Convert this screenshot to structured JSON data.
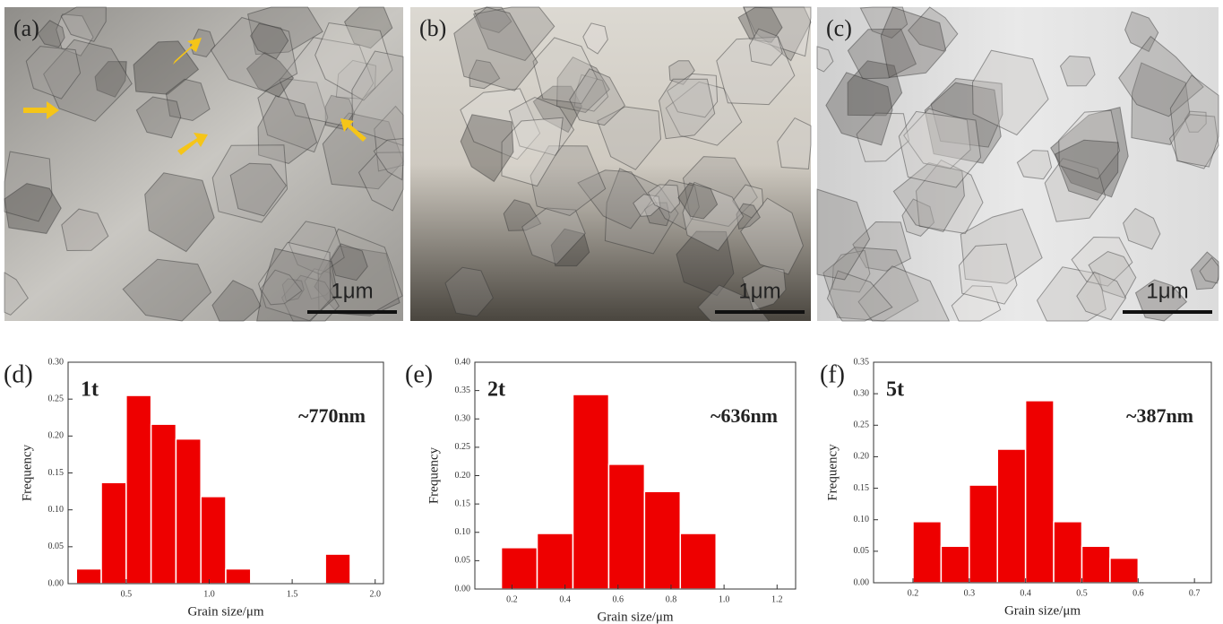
{
  "images": [
    {
      "label": "(a)",
      "scale_bar": "1μm"
    },
    {
      "label": "(b)",
      "scale_bar": "1μm"
    },
    {
      "label": "(c)",
      "scale_bar": "1μm"
    }
  ],
  "chart_data": [
    {
      "type": "histogram",
      "panel": "(d)",
      "sample": "1t",
      "annotation": "~770nm",
      "xlabel": "Grain size/μm",
      "ylabel": "Frequency",
      "color": "#ee0000",
      "bins": [
        0.2,
        0.35,
        0.5,
        0.65,
        0.8,
        0.95,
        1.1,
        1.25,
        1.4,
        1.55,
        1.7,
        1.85
      ],
      "values": [
        0.02,
        0.137,
        0.255,
        0.216,
        0.196,
        0.118,
        0.02,
        0,
        0,
        0,
        0.04
      ],
      "xlim": [
        0.15,
        2.05
      ],
      "xticks": [
        0.5,
        {
          "value": 1,
          "label": "1.0"
        },
        1.5,
        {
          "value": 2,
          "label": "2.0"
        }
      ],
      "ylim": [
        0,
        0.3
      ],
      "yticks": [
        {
          "value": 0,
          "label": "0.00"
        },
        0.05,
        {
          "value": 0.1,
          "label": "0.10"
        },
        0.15,
        {
          "value": 0.2,
          "label": "0.20"
        },
        0.25,
        {
          "value": 0.3,
          "label": "0.30"
        }
      ]
    },
    {
      "type": "histogram",
      "panel": "(e)",
      "sample": "2t",
      "annotation": "~636nm",
      "xlabel": "Grain size/μm",
      "ylabel": "Frequency",
      "color": "#ee0000",
      "bins": [
        0.16,
        0.295,
        0.43,
        0.565,
        0.7,
        0.835,
        0.97
      ],
      "values": [
        0.073,
        0.098,
        0.343,
        0.22,
        0.172,
        0.098
      ],
      "xlim": [
        0.06,
        1.27
      ],
      "xticks": [
        0.2,
        0.4,
        0.6,
        0.8,
        {
          "value": 1,
          "label": "1.0"
        },
        1.2
      ],
      "ylim": [
        0,
        0.4
      ],
      "yticks": [
        {
          "value": 0,
          "label": "0.00"
        },
        0.05,
        {
          "value": 0.1,
          "label": "0.10"
        },
        0.15,
        {
          "value": 0.2,
          "label": "0.20"
        },
        0.25,
        {
          "value": 0.3,
          "label": "0.30"
        },
        0.35,
        {
          "value": 0.4,
          "label": "0.40"
        }
      ]
    },
    {
      "type": "histogram",
      "panel": "(f)",
      "sample": "5t",
      "annotation": "~387nm",
      "xlabel": "Grain size/μm",
      "ylabel": "Frequency",
      "color": "#ee0000",
      "bins": [
        0.2,
        0.25,
        0.3,
        0.35,
        0.4,
        0.45,
        0.5,
        0.55,
        0.6
      ],
      "values": [
        0.097,
        0.058,
        0.155,
        0.212,
        0.289,
        0.097,
        0.058,
        0.039
      ],
      "xlim": [
        0.13,
        0.73
      ],
      "xticks": [
        0.2,
        0.3,
        0.4,
        0.5,
        0.6,
        0.7
      ],
      "ylim": [
        0,
        0.35
      ],
      "yticks": [
        {
          "value": 0,
          "label": "0.00"
        },
        0.05,
        {
          "value": 0.1,
          "label": "0.10"
        },
        0.15,
        {
          "value": 0.2,
          "label": "0.20"
        },
        0.25,
        {
          "value": 0.3,
          "label": "0.30"
        },
        0.35
      ]
    }
  ]
}
